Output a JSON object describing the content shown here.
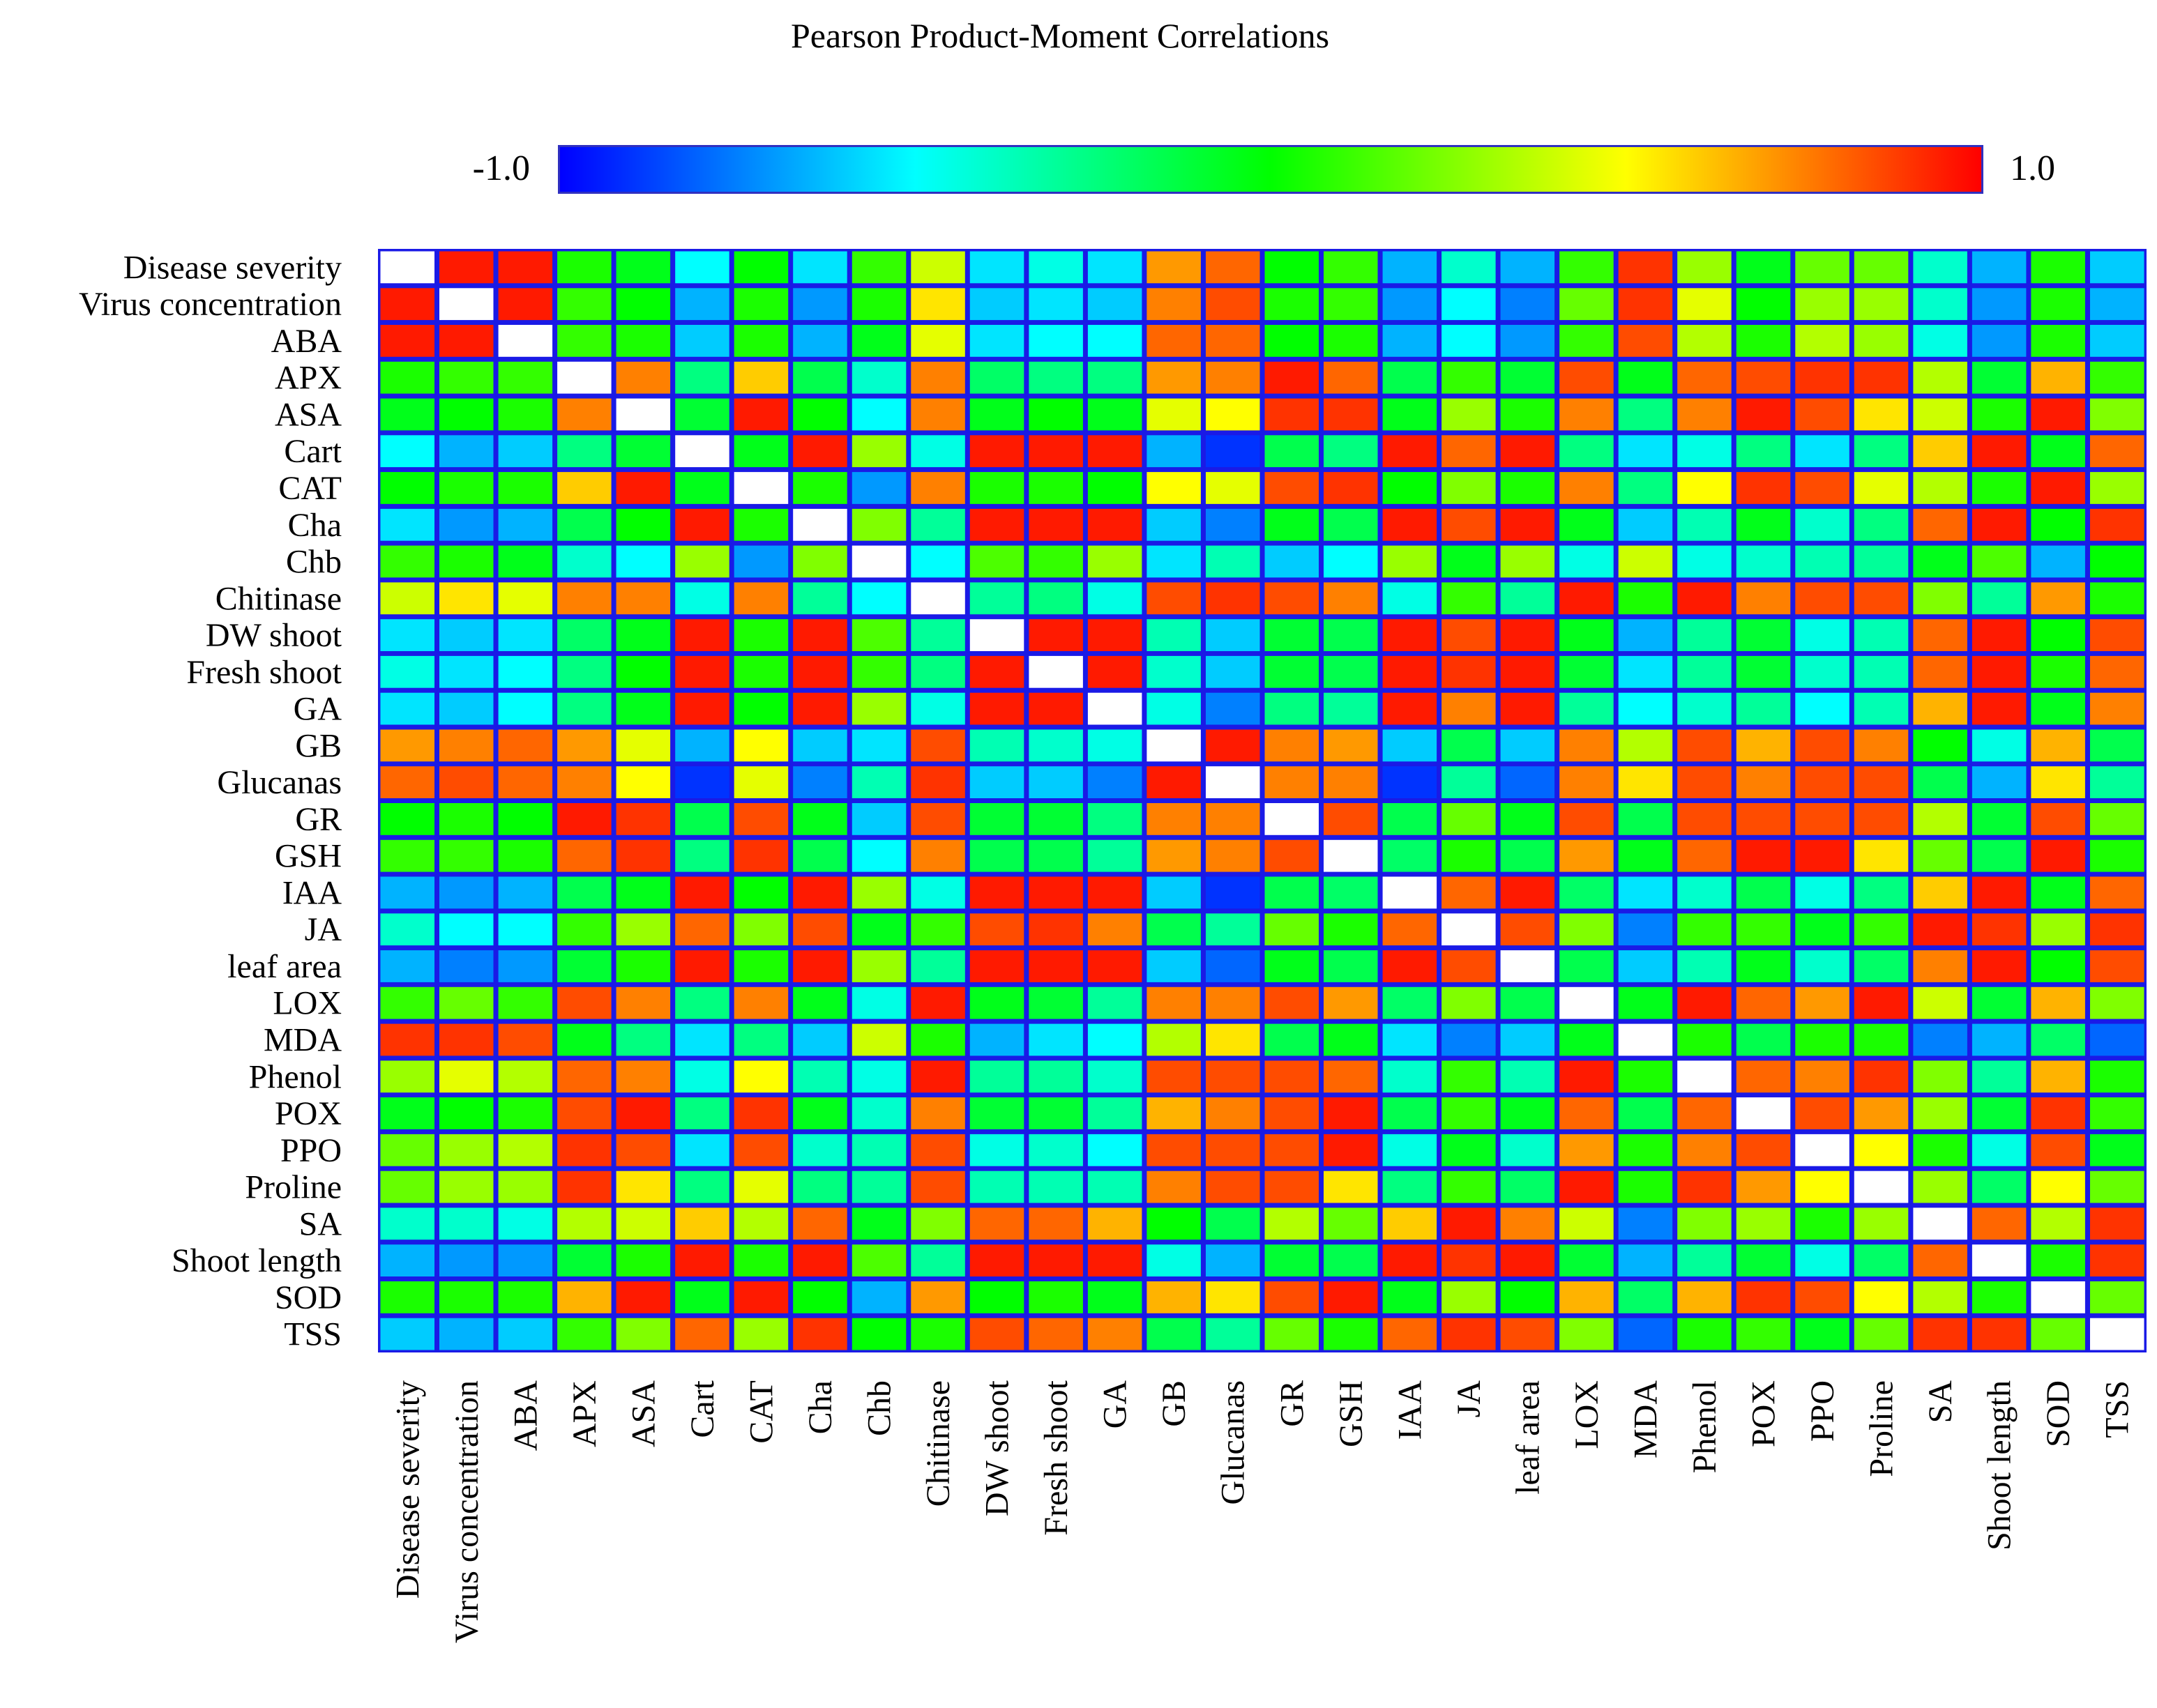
{
  "chart_data": {
    "type": "heatmap",
    "title": "Pearson Product-Moment Correlations",
    "colorbar": {
      "min_label": "-1.0",
      "max_label": "1.0",
      "range": [
        -1,
        1
      ],
      "colors": [
        "#0000ff",
        "#00ffff",
        "#00ff00",
        "#ffff00",
        "#ff0000"
      ]
    },
    "diagonal_color": "#ffffff",
    "grid_color": "#1a1ae6",
    "variables": [
      "Disease severity",
      "Virus concentration",
      "ABA",
      "APX",
      "ASA",
      "Cart",
      "CAT",
      "Cha",
      "Chb",
      "Chitinase",
      "DW shoot",
      "Fresh shoot",
      "GA",
      "GB",
      "Glucanas",
      "GR",
      "GSH",
      "IAA",
      "JA",
      "leaf area",
      "LOX",
      "MDA",
      "Phenol",
      "POX",
      "PPO",
      "Proline",
      "SA",
      "Shoot length",
      "SOD",
      "TSS"
    ],
    "matrix": [
      [
        1,
        0.95,
        0.95,
        0.05,
        -0.05,
        -0.5,
        0.0,
        -0.55,
        0.1,
        0.4,
        -0.55,
        -0.45,
        -0.55,
        0.7,
        0.8,
        0.0,
        0.1,
        -0.65,
        -0.4,
        -0.65,
        0.1,
        0.9,
        0.3,
        -0.05,
        0.2,
        0.2,
        -0.4,
        -0.65,
        0.05,
        -0.6
      ],
      [
        0.95,
        1,
        0.95,
        0.1,
        0.0,
        -0.65,
        0.05,
        -0.7,
        0.05,
        0.55,
        -0.6,
        -0.55,
        -0.6,
        0.75,
        0.85,
        0.05,
        0.1,
        -0.7,
        -0.5,
        -0.75,
        0.2,
        0.9,
        0.45,
        0.0,
        0.3,
        0.3,
        -0.4,
        -0.7,
        0.05,
        -0.65
      ],
      [
        0.95,
        0.95,
        1,
        0.1,
        0.05,
        -0.6,
        0.05,
        -0.65,
        -0.05,
        0.45,
        -0.55,
        -0.5,
        -0.5,
        0.8,
        0.8,
        0.0,
        0.05,
        -0.65,
        -0.5,
        -0.7,
        0.1,
        0.85,
        0.35,
        0.05,
        0.35,
        0.3,
        -0.45,
        -0.7,
        0.05,
        -0.6
      ],
      [
        0.05,
        0.1,
        0.1,
        1,
        0.75,
        -0.25,
        0.6,
        -0.15,
        -0.4,
        0.75,
        -0.2,
        -0.25,
        -0.25,
        0.7,
        0.75,
        0.95,
        0.8,
        -0.15,
        0.1,
        -0.1,
        0.85,
        -0.05,
        0.8,
        0.85,
        0.9,
        0.9,
        0.35,
        -0.1,
        0.65,
        0.1
      ],
      [
        -0.05,
        0.0,
        0.05,
        0.75,
        1,
        -0.1,
        0.95,
        0.0,
        -0.5,
        0.75,
        -0.05,
        0.0,
        -0.05,
        0.45,
        0.5,
        0.9,
        0.9,
        -0.05,
        0.3,
        0.05,
        0.75,
        -0.25,
        0.75,
        0.95,
        0.85,
        0.55,
        0.4,
        0.05,
        0.95,
        0.25
      ],
      [
        -0.5,
        -0.65,
        -0.6,
        -0.25,
        -0.1,
        1,
        -0.05,
        0.95,
        0.3,
        -0.45,
        0.95,
        0.95,
        0.95,
        -0.65,
        -0.9,
        -0.15,
        -0.25,
        0.95,
        0.8,
        0.95,
        -0.25,
        -0.55,
        -0.45,
        -0.25,
        -0.55,
        -0.25,
        0.6,
        0.95,
        -0.05,
        0.8
      ],
      [
        0.0,
        0.05,
        0.05,
        0.6,
        0.95,
        -0.05,
        1,
        0.05,
        -0.7,
        0.75,
        0.05,
        0.05,
        0.0,
        0.5,
        0.45,
        0.85,
        0.9,
        0.0,
        0.25,
        0.05,
        0.75,
        -0.25,
        0.5,
        0.9,
        0.85,
        0.45,
        0.35,
        0.05,
        0.95,
        0.3
      ],
      [
        -0.55,
        -0.7,
        -0.65,
        -0.15,
        0.0,
        0.95,
        0.05,
        1,
        0.25,
        -0.3,
        0.95,
        0.95,
        0.95,
        -0.6,
        -0.75,
        -0.05,
        -0.15,
        0.95,
        0.85,
        0.95,
        -0.05,
        -0.6,
        -0.35,
        -0.05,
        -0.4,
        -0.25,
        0.8,
        0.95,
        0.0,
        0.9
      ],
      [
        0.1,
        0.05,
        -0.05,
        -0.4,
        -0.5,
        0.3,
        -0.7,
        0.25,
        1,
        -0.5,
        0.15,
        0.1,
        0.3,
        -0.55,
        -0.35,
        -0.6,
        -0.5,
        0.3,
        -0.05,
        0.3,
        -0.45,
        0.4,
        -0.45,
        -0.4,
        -0.35,
        -0.3,
        -0.05,
        0.15,
        -0.65,
        0.0
      ],
      [
        0.4,
        0.55,
        0.45,
        0.75,
        0.75,
        -0.45,
        0.75,
        -0.3,
        -0.5,
        1,
        -0.3,
        -0.25,
        -0.45,
        0.85,
        0.9,
        0.85,
        0.75,
        -0.45,
        0.1,
        -0.3,
        0.95,
        0.05,
        0.95,
        0.75,
        0.85,
        0.85,
        0.25,
        -0.3,
        0.7,
        0.05
      ],
      [
        -0.55,
        -0.6,
        -0.55,
        -0.2,
        -0.05,
        0.95,
        0.05,
        0.95,
        0.15,
        -0.3,
        1,
        0.95,
        0.95,
        -0.35,
        -0.6,
        -0.1,
        -0.15,
        0.95,
        0.85,
        0.95,
        -0.05,
        -0.65,
        -0.3,
        -0.1,
        -0.45,
        -0.35,
        0.8,
        0.95,
        0.0,
        0.85
      ],
      [
        -0.45,
        -0.55,
        -0.5,
        -0.25,
        0.0,
        0.95,
        0.05,
        0.95,
        0.1,
        -0.25,
        0.95,
        1,
        0.95,
        -0.4,
        -0.6,
        -0.1,
        -0.15,
        0.95,
        0.9,
        0.95,
        -0.1,
        -0.55,
        -0.3,
        -0.1,
        -0.4,
        -0.35,
        0.8,
        0.95,
        0.05,
        0.8
      ],
      [
        -0.55,
        -0.6,
        -0.5,
        -0.25,
        -0.05,
        0.95,
        0.0,
        0.95,
        0.3,
        -0.45,
        0.95,
        0.95,
        1,
        -0.45,
        -0.75,
        -0.25,
        -0.3,
        0.95,
        0.75,
        0.95,
        -0.3,
        -0.5,
        -0.4,
        -0.3,
        -0.5,
        -0.35,
        0.65,
        0.95,
        -0.05,
        0.75
      ],
      [
        0.7,
        0.75,
        0.8,
        0.7,
        0.45,
        -0.65,
        0.5,
        -0.6,
        -0.55,
        0.85,
        -0.35,
        -0.4,
        -0.45,
        1,
        0.95,
        0.75,
        0.7,
        -0.6,
        -0.15,
        -0.6,
        0.75,
        0.35,
        0.85,
        0.65,
        0.85,
        0.75,
        0.0,
        -0.45,
        0.65,
        -0.15
      ],
      [
        0.8,
        0.85,
        0.8,
        0.75,
        0.5,
        -0.9,
        0.45,
        -0.75,
        -0.35,
        0.9,
        -0.6,
        -0.6,
        -0.75,
        0.95,
        1,
        0.75,
        0.75,
        -0.9,
        -0.3,
        -0.8,
        0.75,
        0.55,
        0.85,
        0.75,
        0.85,
        0.85,
        -0.15,
        -0.65,
        0.55,
        -0.3
      ],
      [
        0.0,
        0.05,
        0.0,
        0.95,
        0.9,
        -0.15,
        0.85,
        -0.05,
        -0.6,
        0.85,
        -0.1,
        -0.1,
        -0.25,
        0.75,
        0.75,
        1,
        0.85,
        -0.15,
        0.2,
        -0.05,
        0.85,
        -0.15,
        0.85,
        0.85,
        0.85,
        0.85,
        0.35,
        -0.1,
        0.85,
        0.2
      ],
      [
        0.1,
        0.1,
        0.05,
        0.8,
        0.9,
        -0.25,
        0.9,
        -0.15,
        -0.5,
        0.75,
        -0.15,
        -0.15,
        -0.3,
        0.7,
        0.75,
        0.85,
        1,
        -0.2,
        0.05,
        -0.15,
        0.7,
        -0.05,
        0.8,
        0.95,
        0.95,
        0.55,
        0.2,
        -0.15,
        0.95,
        0.05
      ],
      [
        -0.65,
        -0.7,
        -0.65,
        -0.15,
        -0.05,
        0.95,
        0.0,
        0.95,
        0.3,
        -0.45,
        0.95,
        0.95,
        0.95,
        -0.6,
        -0.9,
        -0.15,
        -0.2,
        1,
        0.8,
        0.95,
        -0.2,
        -0.55,
        -0.4,
        -0.15,
        -0.45,
        -0.25,
        0.6,
        0.95,
        -0.05,
        0.8
      ],
      [
        -0.4,
        -0.5,
        -0.5,
        0.1,
        0.3,
        0.8,
        0.25,
        0.85,
        -0.05,
        0.1,
        0.85,
        0.9,
        0.75,
        -0.15,
        -0.3,
        0.2,
        0.05,
        0.8,
        1,
        0.85,
        0.25,
        -0.75,
        0.1,
        0.1,
        -0.05,
        0.1,
        0.95,
        0.9,
        0.3,
        0.9
      ],
      [
        -0.65,
        -0.75,
        -0.7,
        -0.1,
        0.05,
        0.95,
        0.05,
        0.95,
        0.3,
        -0.3,
        0.95,
        0.95,
        0.95,
        -0.6,
        -0.8,
        -0.05,
        -0.15,
        0.95,
        0.85,
        1,
        -0.15,
        -0.6,
        -0.35,
        -0.05,
        -0.4,
        -0.2,
        0.75,
        0.95,
        0.0,
        0.85
      ],
      [
        0.1,
        0.2,
        0.1,
        0.85,
        0.75,
        -0.25,
        0.75,
        -0.05,
        -0.45,
        0.95,
        -0.05,
        -0.1,
        -0.3,
        0.75,
        0.75,
        0.85,
        0.7,
        -0.2,
        0.25,
        -0.15,
        1,
        -0.05,
        0.95,
        0.8,
        0.7,
        0.95,
        0.4,
        -0.1,
        0.65,
        0.25
      ],
      [
        0.9,
        0.9,
        0.85,
        -0.05,
        -0.25,
        -0.55,
        -0.25,
        -0.6,
        0.4,
        0.05,
        -0.65,
        -0.55,
        -0.5,
        0.35,
        0.55,
        -0.15,
        -0.05,
        -0.55,
        -0.75,
        -0.6,
        -0.05,
        1,
        0.05,
        -0.15,
        0.05,
        0.05,
        -0.75,
        -0.65,
        -0.2,
        -0.8
      ],
      [
        0.3,
        0.45,
        0.35,
        0.8,
        0.75,
        -0.45,
        0.5,
        -0.35,
        -0.45,
        0.95,
        -0.3,
        -0.3,
        -0.4,
        0.85,
        0.85,
        0.85,
        0.8,
        -0.4,
        0.1,
        -0.35,
        0.95,
        0.05,
        1,
        0.8,
        0.75,
        0.9,
        0.25,
        -0.3,
        0.65,
        0.05
      ],
      [
        -0.05,
        0.0,
        0.05,
        0.85,
        0.95,
        -0.25,
        0.9,
        -0.05,
        -0.4,
        0.75,
        -0.1,
        -0.1,
        -0.3,
        0.65,
        0.75,
        0.85,
        0.95,
        -0.15,
        0.1,
        -0.05,
        0.8,
        -0.15,
        0.8,
        1,
        0.85,
        0.7,
        0.3,
        -0.1,
        0.9,
        0.1
      ],
      [
        0.2,
        0.3,
        0.35,
        0.9,
        0.85,
        -0.55,
        0.85,
        -0.4,
        -0.35,
        0.85,
        -0.45,
        -0.4,
        -0.5,
        0.85,
        0.85,
        0.85,
        0.95,
        -0.45,
        -0.05,
        -0.4,
        0.7,
        0.05,
        0.75,
        0.85,
        1,
        0.5,
        0.05,
        -0.45,
        0.85,
        -0.05
      ],
      [
        0.2,
        0.3,
        0.3,
        0.9,
        0.55,
        -0.25,
        0.45,
        -0.25,
        -0.3,
        0.85,
        -0.35,
        -0.35,
        -0.35,
        0.75,
        0.85,
        0.85,
        0.55,
        -0.25,
        0.1,
        -0.2,
        0.95,
        0.05,
        0.9,
        0.7,
        0.5,
        1,
        0.3,
        -0.2,
        0.5,
        0.2
      ],
      [
        -0.4,
        -0.4,
        -0.45,
        0.35,
        0.4,
        0.6,
        0.35,
        0.8,
        -0.05,
        0.25,
        0.8,
        0.8,
        0.65,
        0.0,
        -0.15,
        0.35,
        0.2,
        0.6,
        0.95,
        0.75,
        0.4,
        -0.75,
        0.25,
        0.3,
        0.05,
        0.3,
        1,
        0.8,
        0.35,
        0.9
      ],
      [
        -0.65,
        -0.7,
        -0.7,
        -0.1,
        0.05,
        0.95,
        0.05,
        0.95,
        0.15,
        -0.3,
        0.95,
        0.95,
        0.95,
        -0.45,
        -0.65,
        -0.1,
        -0.15,
        0.95,
        0.9,
        0.95,
        -0.1,
        -0.65,
        -0.3,
        -0.1,
        -0.45,
        -0.2,
        0.8,
        1,
        0.05,
        0.9
      ],
      [
        0.05,
        0.05,
        0.05,
        0.65,
        0.95,
        -0.05,
        0.95,
        0.0,
        -0.65,
        0.7,
        0.0,
        0.05,
        -0.05,
        0.65,
        0.55,
        0.85,
        0.95,
        -0.05,
        0.3,
        0.0,
        0.65,
        -0.2,
        0.65,
        0.9,
        0.85,
        0.5,
        0.35,
        0.05,
        1,
        0.2
      ],
      [
        -0.6,
        -0.65,
        -0.6,
        0.1,
        0.25,
        0.8,
        0.3,
        0.9,
        0.0,
        0.05,
        0.85,
        0.8,
        0.75,
        -0.15,
        -0.3,
        0.2,
        0.05,
        0.8,
        0.9,
        0.85,
        0.25,
        -0.8,
        0.05,
        0.1,
        -0.05,
        0.2,
        0.9,
        0.9,
        0.2,
        1
      ]
    ]
  }
}
